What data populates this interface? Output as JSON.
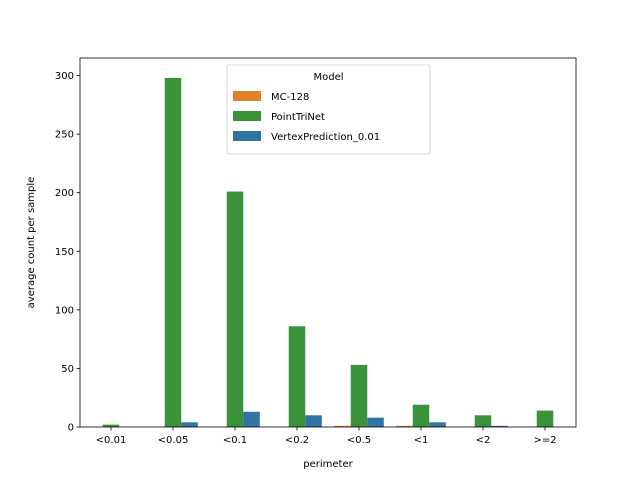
{
  "chart_data": {
    "type": "bar",
    "title": "",
    "xlabel": "perimeter",
    "ylabel": "average count per sample",
    "categories": [
      "<0.01",
      "<0.05",
      "<0.1",
      "<0.2",
      "<0.5",
      "<1",
      "<2",
      ">=2"
    ],
    "ylim": [
      0,
      315
    ],
    "yticks": [
      0,
      50,
      100,
      150,
      200,
      250,
      300
    ],
    "grid": false,
    "legend": {
      "title": "Model",
      "placement": "top-center"
    },
    "series": [
      {
        "name": "MC-128",
        "color": "#e1812c",
        "values": [
          0,
          0,
          0,
          0,
          1,
          1,
          0,
          0
        ]
      },
      {
        "name": "PointTriNet",
        "color": "#3a923a",
        "values": [
          2,
          298,
          201,
          86,
          53,
          19,
          10,
          14
        ]
      },
      {
        "name": "VertexPrediction_0.01",
        "color": "#3274a1",
        "values": [
          0,
          4,
          13,
          10,
          8,
          4,
          1,
          0
        ]
      }
    ]
  }
}
